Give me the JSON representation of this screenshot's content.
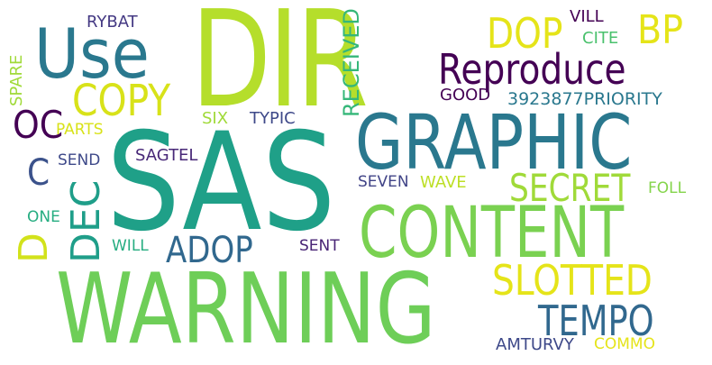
{
  "words": [
    {
      "id": "dir",
      "text": "DIR",
      "color": "#b5de2b"
    },
    {
      "id": "sas",
      "text": "SAS",
      "color": "#1fa088"
    },
    {
      "id": "warning",
      "text": "WARNING",
      "color": "#6ece58"
    },
    {
      "id": "graphic",
      "text": "GRAPHIC",
      "color": "#2a788e"
    },
    {
      "id": "content",
      "text": "CONTENT",
      "color": "#7ad151"
    },
    {
      "id": "use",
      "text": "Use",
      "color": "#2a788e"
    },
    {
      "id": "reproduce",
      "text": "Reproduce",
      "color": "#440154"
    },
    {
      "id": "copy",
      "text": "COPY",
      "color": "#d8e219"
    },
    {
      "id": "dop",
      "text": "DOP",
      "color": "#e5e419"
    },
    {
      "id": "bp",
      "text": "BP",
      "color": "#e5e419"
    },
    {
      "id": "oc",
      "text": "OC",
      "color": "#440154"
    },
    {
      "id": "slotted",
      "text": "SLOTTED",
      "color": "#e5e419"
    },
    {
      "id": "tempo",
      "text": "TEMPO",
      "color": "#31688e"
    },
    {
      "id": "secret",
      "text": "SECRET",
      "color": "#a0da39"
    },
    {
      "id": "adop",
      "text": "ADOP",
      "color": "#31688e"
    },
    {
      "id": "c",
      "text": "C",
      "color": "#3b528b"
    },
    {
      "id": "dec",
      "text": "DEC",
      "color": "#1f9e89"
    },
    {
      "id": "d",
      "text": "D",
      "color": "#d2e21b"
    },
    {
      "id": "received",
      "text": "RECEIVED",
      "color": "#35b779"
    },
    {
      "id": "spare",
      "text": "SPARE",
      "color": "#a0da39"
    },
    {
      "id": "rybat",
      "text": "RYBAT",
      "color": "#443983"
    },
    {
      "id": "vill",
      "text": "VILL",
      "color": "#440154"
    },
    {
      "id": "cite",
      "text": "CITE",
      "color": "#4ac16d"
    },
    {
      "id": "good",
      "text": "GOOD",
      "color": "#440154"
    },
    {
      "id": "num",
      "text": "3923877PRIORITY",
      "color": "#2a788e"
    },
    {
      "id": "parts",
      "text": "PARTS",
      "color": "#d8e219"
    },
    {
      "id": "six",
      "text": "SIX",
      "color": "#a0da39"
    },
    {
      "id": "typic",
      "text": "TYPIC",
      "color": "#3e4989"
    },
    {
      "id": "send",
      "text": "SEND",
      "color": "#3e4989"
    },
    {
      "id": "sagtel",
      "text": "SAGTEL",
      "color": "#482878"
    },
    {
      "id": "seven",
      "text": "SEVEN",
      "color": "#414487"
    },
    {
      "id": "wave",
      "text": "WAVE",
      "color": "#bddf26"
    },
    {
      "id": "foll",
      "text": "FOLL",
      "color": "#84d44b"
    },
    {
      "id": "one",
      "text": "ONE",
      "color": "#26ad81"
    },
    {
      "id": "will",
      "text": "WILL",
      "color": "#26ad81"
    },
    {
      "id": "sent",
      "text": "SENT",
      "color": "#482475"
    },
    {
      "id": "amturvy",
      "text": "AMTURVY",
      "color": "#3e4989"
    },
    {
      "id": "commo",
      "text": "COMMO",
      "color": "#e5e419"
    }
  ]
}
